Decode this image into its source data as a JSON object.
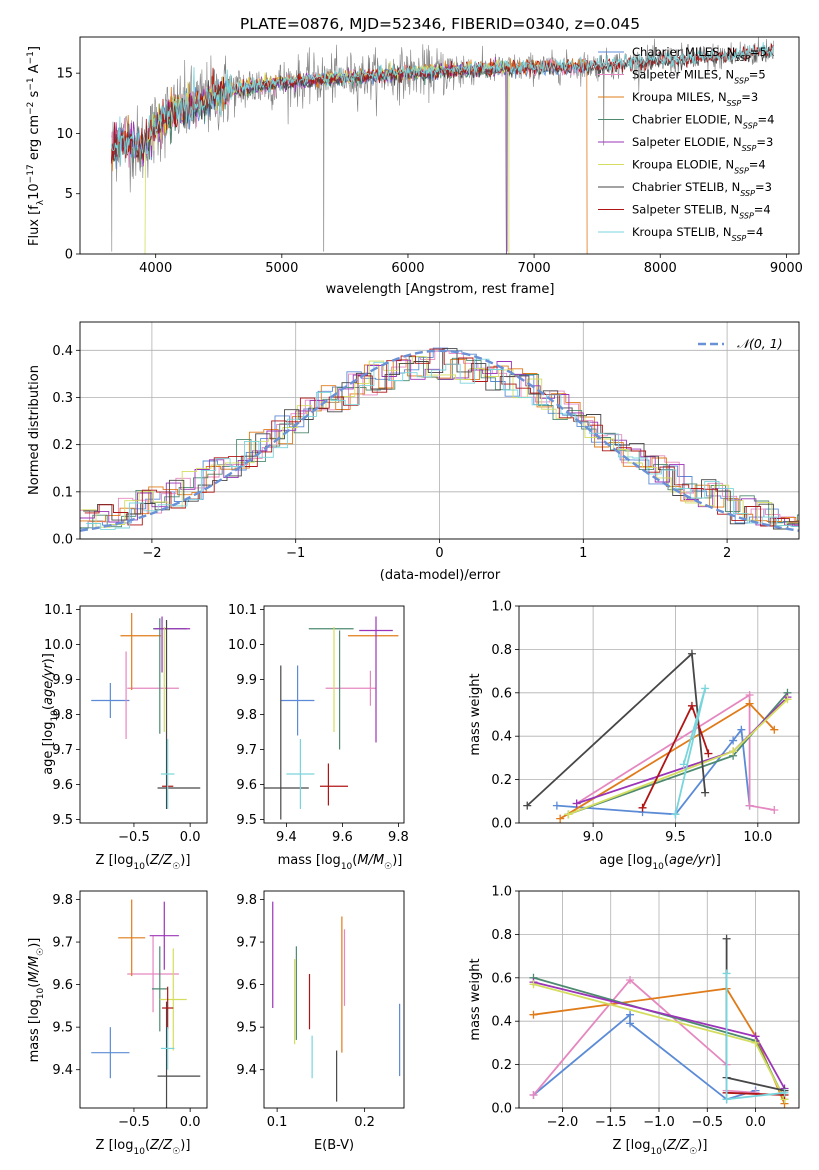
{
  "figure": {
    "title": "PLATE=0876, MJD=52346, FIBERID=0340, z=0.045",
    "colors": {
      "chabrier_miles": "#5b8bd6",
      "salpeter_miles": "#e588c0",
      "kroupa_miles": "#e07b1a",
      "chabrier_elodie": "#4d8a70",
      "salpeter_elodie": "#9b34b8",
      "kroupa_elodie": "#d4dd5e",
      "chabrier_stelib": "#474747",
      "salpeter_stelib": "#b01515",
      "kroupa_stelib": "#79d5dc",
      "data": "#808080",
      "gaussian": "#6a91d6"
    }
  },
  "chart_data": [
    {
      "id": "spectrum",
      "type": "line",
      "xlabel": "wavelength [Angstrom, rest frame]",
      "ylabel": "Flux [fλ10⁻¹⁷ erg cm⁻² s⁻¹ A⁻¹]",
      "xlim": [
        3400,
        9100
      ],
      "ylim": [
        0,
        18
      ],
      "xticks": [
        "4000",
        "5000",
        "6000",
        "7000",
        "8000",
        "9000"
      ],
      "yticks": [
        "0",
        "5",
        "10",
        "15"
      ],
      "legend": [
        "Chabrier MILES, N_SSP=5",
        "Salpeter MILES, N_SSP=5",
        "Kroupa MILES, N_SSP=3",
        "Chabrier ELODIE, N_SSP=4",
        "Salpeter ELODIE, N_SSP=3",
        "Kroupa ELODIE, N_SSP=4",
        "Chabrier STELIB, N_SSP=3",
        "Salpeter STELIB, N_SSP=4",
        "Kroupa STELIB, N_SSP=4"
      ],
      "legend_placement": "upper right",
      "continuum_x": [
        3650,
        3700,
        3800,
        3900,
        4000,
        4100,
        4200,
        4300,
        4400,
        4500,
        4700,
        5000,
        5300,
        5600,
        6000,
        6400,
        6800,
        7200,
        7600,
        8000,
        8400,
        8800,
        8900
      ],
      "continuum_y": [
        8.5,
        9.5,
        9.3,
        8.9,
        10.5,
        11.5,
        12,
        12.3,
        12.8,
        13.3,
        13.8,
        14.2,
        14.5,
        14.7,
        15,
        15.2,
        15.4,
        15.5,
        15.7,
        16.0,
        16.3,
        16.8,
        17.0
      ]
    },
    {
      "id": "residuals",
      "type": "line",
      "xlabel": "(data-model)/error",
      "ylabel": "Normed distribution",
      "xlim": [
        -2.5,
        2.5
      ],
      "ylim": [
        0,
        0.46
      ],
      "xticks": [
        "−2",
        "−1",
        "0",
        "1",
        "2"
      ],
      "yticks": [
        "0.0",
        "0.1",
        "0.2",
        "0.3",
        "0.4"
      ],
      "grid": true,
      "legend": [
        "𝒩(0, 1)"
      ],
      "legend_placement": "upper right",
      "gaussian": {
        "mean": 0,
        "sigma": 1
      }
    },
    {
      "id": "age_vs_Z",
      "type": "scatter",
      "xlabel": "Z [log₁₀(Z/Z☉)]",
      "ylabel": "age  [log₁₀(age/yr)]",
      "xlim": [
        -0.98,
        0.15
      ],
      "ylim": [
        9.49,
        10.11
      ],
      "xticks": [
        "−0.5",
        "0.0"
      ],
      "yticks": [
        "9.5",
        "9.6",
        "9.7",
        "9.8",
        "9.9",
        "10.0",
        "10.1"
      ],
      "points": [
        {
          "model": "chabrier_miles",
          "x": -0.71,
          "xerr": 0.17,
          "y": 9.84,
          "yerr": 0.05
        },
        {
          "model": "salpeter_miles",
          "x": -0.33,
          "xerr": 0.23,
          "y": 9.875,
          "yerr": 0.0
        },
        {
          "model": "salpeter_miles",
          "x": -0.57,
          "xerr": 0.0,
          "y": 9.855,
          "yerr": 0.125
        },
        {
          "model": "kroupa_miles",
          "x": -0.44,
          "xerr": 0.18,
          "y": 10.025,
          "yerr": 0.0
        },
        {
          "model": "kroupa_miles",
          "x": -0.52,
          "xerr": 0.0,
          "y": 9.98,
          "yerr": 0.11
        },
        {
          "model": "chabrier_elodie",
          "x": -0.27,
          "xerr": 0.0,
          "y": 9.91,
          "yerr": 0.165
        },
        {
          "model": "chabrier_elodie",
          "x": -0.18,
          "xerr": 0.15,
          "y": 10.045,
          "yerr": 0.0
        },
        {
          "model": "salpeter_elodie",
          "x": -0.16,
          "xerr": 0.16,
          "y": 10.045,
          "yerr": 0.0
        },
        {
          "model": "salpeter_elodie",
          "x": -0.25,
          "xerr": 0.0,
          "y": 10.0,
          "yerr": 0.08
        },
        {
          "model": "kroupa_elodie",
          "x": -0.23,
          "xerr": 0.0,
          "y": 9.9,
          "yerr": 0.15
        },
        {
          "model": "chabrier_stelib",
          "x": -0.21,
          "xerr": 0.0,
          "y": 9.8,
          "yerr": 0.27
        },
        {
          "model": "chabrier_stelib",
          "x": -0.1,
          "xerr": 0.19,
          "y": 9.59,
          "yerr": 0.0
        },
        {
          "model": "salpeter_stelib",
          "x": -0.2,
          "xerr": 0.05,
          "y": 9.595,
          "yerr": 0.0
        },
        {
          "model": "kroupa_stelib",
          "x": -0.2,
          "xerr": 0.06,
          "y": 9.63,
          "yerr": 0.1
        }
      ]
    },
    {
      "id": "age_vs_mass",
      "type": "scatter",
      "xlabel": "mass [log₁₀(M/M☉)]",
      "ylabel": "",
      "xlim": [
        9.32,
        9.82
      ],
      "ylim": [
        9.49,
        10.11
      ],
      "xticks": [
        "9.4",
        "9.6",
        "9.8"
      ],
      "yticks": [
        "9.5",
        "9.6",
        "9.7",
        "9.8",
        "9.9",
        "10.0",
        "10.1"
      ],
      "points": [
        {
          "model": "chabrier_miles",
          "x": 9.44,
          "xerr": 0.06,
          "y": 9.84,
          "yerr": 0.1
        },
        {
          "model": "salpeter_miles",
          "x": 9.63,
          "xerr": 0.09,
          "y": 9.875,
          "yerr": 0.0
        },
        {
          "model": "salpeter_miles",
          "x": 9.7,
          "xerr": 0.0,
          "y": 9.875,
          "yerr": 0.05
        },
        {
          "model": "kroupa_miles",
          "x": 9.71,
          "xerr": 0.09,
          "y": 10.025,
          "yerr": 0.0
        },
        {
          "model": "chabrier_elodie",
          "x": 9.56,
          "xerr": 0.08,
          "y": 10.045,
          "yerr": 0.0
        },
        {
          "model": "chabrier_elodie",
          "x": 9.59,
          "xerr": 0.0,
          "y": 9.87,
          "yerr": 0.17
        },
        {
          "model": "salpeter_elodie",
          "x": 9.72,
          "xerr": 0.06,
          "y": 10.04,
          "yerr": 0.0
        },
        {
          "model": "salpeter_elodie",
          "x": 9.72,
          "xerr": 0.0,
          "y": 9.9,
          "yerr": 0.18
        },
        {
          "model": "kroupa_elodie",
          "x": 9.57,
          "xerr": 0.0,
          "y": 9.9,
          "yerr": 0.15
        },
        {
          "model": "chabrier_stelib",
          "x": 9.4,
          "xerr": 0.08,
          "y": 9.59,
          "yerr": 0.0
        },
        {
          "model": "chabrier_stelib",
          "x": 9.38,
          "xerr": 0.0,
          "y": 9.72,
          "yerr": 0.22
        },
        {
          "model": "salpeter_stelib",
          "x": 9.57,
          "xerr": 0.05,
          "y": 9.595,
          "yerr": 0.0
        },
        {
          "model": "salpeter_stelib",
          "x": 9.55,
          "xerr": 0.0,
          "y": 9.6,
          "yerr": 0.06
        },
        {
          "model": "kroupa_stelib",
          "x": 9.45,
          "xerr": 0.05,
          "y": 9.63,
          "yerr": 0.1
        }
      ]
    },
    {
      "id": "weight_vs_age",
      "type": "line",
      "xlabel": "age  [log₁₀(age/yr)]",
      "ylabel": "mass weight",
      "xlim": [
        8.55,
        10.25
      ],
      "ylim": [
        0,
        1.0
      ],
      "xticks": [
        "9.0",
        "9.5",
        "10.0"
      ],
      "yticks": [
        "0.0",
        "0.2",
        "0.4",
        "0.6",
        "0.8",
        "1.0"
      ],
      "grid": true,
      "series": [
        {
          "model": "chabrier_miles",
          "points": [
            [
              8.78,
              0.08
            ],
            [
              9.3,
              0.05
            ],
            [
              9.5,
              0.04
            ],
            [
              9.85,
              0.38
            ],
            [
              9.9,
              0.43
            ],
            [
              9.95,
              0.08
            ]
          ]
        },
        {
          "model": "salpeter_miles",
          "points": [
            [
              8.9,
              0.09
            ],
            [
              9.95,
              0.59
            ],
            [
              9.95,
              0.08
            ],
            [
              10.1,
              0.06
            ]
          ]
        },
        {
          "model": "kroupa_miles",
          "points": [
            [
              8.8,
              0.02
            ],
            [
              9.95,
              0.55
            ],
            [
              10.1,
              0.43
            ]
          ]
        },
        {
          "model": "chabrier_elodie",
          "points": [
            [
              8.85,
              0.04
            ],
            [
              9.85,
              0.31
            ],
            [
              10.18,
              0.6
            ]
          ]
        },
        {
          "model": "salpeter_elodie",
          "points": [
            [
              8.9,
              0.09
            ],
            [
              9.85,
              0.33
            ],
            [
              10.18,
              0.58
            ]
          ]
        },
        {
          "model": "kroupa_elodie",
          "points": [
            [
              8.85,
              0.04
            ],
            [
              9.85,
              0.33
            ],
            [
              10.18,
              0.57
            ]
          ]
        },
        {
          "model": "chabrier_stelib",
          "points": [
            [
              8.6,
              0.08
            ],
            [
              9.6,
              0.78
            ],
            [
              9.68,
              0.14
            ]
          ]
        },
        {
          "model": "salpeter_stelib",
          "points": [
            [
              9.3,
              0.07
            ],
            [
              9.6,
              0.54
            ],
            [
              9.7,
              0.32
            ]
          ]
        },
        {
          "model": "kroupa_stelib",
          "points": [
            [
              9.5,
              0.04
            ],
            [
              9.68,
              0.62
            ],
            [
              9.55,
              0.27
            ]
          ]
        }
      ]
    },
    {
      "id": "mass_vs_Z",
      "type": "scatter",
      "xlabel": "Z [log₁₀(Z/Z☉)]",
      "ylabel": "mass [log₁₀(M/M☉)]",
      "xlim": [
        -0.98,
        0.15
      ],
      "ylim": [
        9.31,
        9.82
      ],
      "xticks": [
        "−0.5",
        "0.0"
      ],
      "yticks": [
        "9.4",
        "9.5",
        "9.6",
        "9.7",
        "9.8"
      ],
      "points": [
        {
          "model": "chabrier_miles",
          "x": -0.71,
          "xerr": 0.17,
          "y": 9.44,
          "yerr": 0.06
        },
        {
          "model": "salpeter_miles",
          "x": -0.33,
          "xerr": 0.23,
          "y": 9.625,
          "yerr": 0.09
        },
        {
          "model": "kroupa_miles",
          "x": -0.52,
          "xerr": 0.12,
          "y": 9.71,
          "yerr": 0.09
        },
        {
          "model": "chabrier_elodie",
          "x": -0.27,
          "xerr": 0.07,
          "y": 9.59,
          "yerr": 0.1
        },
        {
          "model": "salpeter_elodie",
          "x": -0.23,
          "xerr": 0.13,
          "y": 9.715,
          "yerr": 0.08
        },
        {
          "model": "kroupa_elodie",
          "x": -0.15,
          "xerr": 0.12,
          "y": 9.565,
          "yerr": 0.12
        },
        {
          "model": "chabrier_stelib",
          "x": -0.1,
          "xerr": 0.19,
          "y": 9.385,
          "yerr": 0.0
        },
        {
          "model": "chabrier_stelib",
          "x": -0.21,
          "xerr": 0.0,
          "y": 9.4,
          "yerr": 0.16
        },
        {
          "model": "salpeter_stelib",
          "x": -0.2,
          "xerr": 0.05,
          "y": 9.545,
          "yerr": 0.05
        },
        {
          "model": "kroupa_stelib",
          "x": -0.2,
          "xerr": 0.06,
          "y": 9.45,
          "yerr": 0.05
        }
      ]
    },
    {
      "id": "mass_vs_ebv",
      "type": "scatter",
      "xlabel": "E(B-V)",
      "ylabel": "",
      "xlim": [
        0.085,
        0.245
      ],
      "ylim": [
        9.31,
        9.82
      ],
      "xticks": [
        "0.1",
        "0.2"
      ],
      "yticks": [
        "9.4",
        "9.5",
        "9.6",
        "9.7",
        "9.8"
      ],
      "points": [
        {
          "model": "salpeter_elodie",
          "x": 0.095,
          "yerr": 0.125,
          "y": 9.67
        },
        {
          "model": "chabrier_elodie",
          "x": 0.122,
          "yerr": 0.11,
          "y": 9.58
        },
        {
          "model": "kroupa_elodie",
          "x": 0.12,
          "yerr": 0.1,
          "y": 9.56
        },
        {
          "model": "salpeter_stelib",
          "x": 0.137,
          "yerr": 0.065,
          "y": 9.56
        },
        {
          "model": "kroupa_stelib",
          "x": 0.14,
          "yerr": 0.05,
          "y": 9.43
        },
        {
          "model": "chabrier_stelib",
          "x": 0.168,
          "yerr": 0.06,
          "y": 9.385
        },
        {
          "model": "kroupa_miles",
          "x": 0.174,
          "yerr": 0.16,
          "y": 9.6
        },
        {
          "model": "salpeter_miles",
          "x": 0.177,
          "yerr": 0.09,
          "y": 9.64
        },
        {
          "model": "chabrier_miles",
          "x": 0.24,
          "yerr": 0.085,
          "y": 9.47
        }
      ]
    },
    {
      "id": "weight_vs_Z",
      "type": "line",
      "xlabel": "Z [log₁₀(Z/Z☉)]",
      "ylabel": "mass weight",
      "xlim": [
        -2.45,
        0.45
      ],
      "ylim": [
        0,
        1.0
      ],
      "xticks": [
        "−2.0",
        "−1.5",
        "−1.0",
        "−0.5",
        "0.0"
      ],
      "yticks": [
        "0.0",
        "0.2",
        "0.4",
        "0.6",
        "0.8",
        "1.0"
      ],
      "grid": true,
      "series": [
        {
          "model": "chabrier_miles",
          "points": [
            [
              -2.3,
              0.06
            ],
            [
              -1.3,
              0.43
            ],
            [
              -1.3,
              0.39
            ],
            [
              -0.3,
              0.04
            ],
            [
              0.0,
              0.08
            ]
          ]
        },
        {
          "model": "salpeter_miles",
          "points": [
            [
              -2.3,
              0.06
            ],
            [
              -1.3,
              0.59
            ],
            [
              -0.3,
              0.2
            ],
            [
              -0.3,
              0.08
            ],
            [
              0.0,
              0.07
            ]
          ]
        },
        {
          "model": "kroupa_miles",
          "points": [
            [
              -2.3,
              0.43
            ],
            [
              -0.3,
              0.55
            ],
            [
              0.0,
              0.33
            ],
            [
              0.3,
              0.02
            ]
          ]
        },
        {
          "model": "chabrier_elodie",
          "points": [
            [
              -2.3,
              0.6
            ],
            [
              0.0,
              0.31
            ],
            [
              0.3,
              0.04
            ]
          ]
        },
        {
          "model": "salpeter_elodie",
          "points": [
            [
              -2.3,
              0.58
            ],
            [
              0.0,
              0.33
            ],
            [
              0.3,
              0.09
            ]
          ]
        },
        {
          "model": "kroupa_elodie",
          "points": [
            [
              -2.3,
              0.57
            ],
            [
              0.0,
              0.3
            ],
            [
              0.3,
              0.04
            ]
          ]
        },
        {
          "model": "chabrier_stelib",
          "points": [
            [
              -0.3,
              0.78
            ],
            [
              -0.3,
              0.14
            ],
            [
              0.3,
              0.08
            ]
          ]
        },
        {
          "model": "salpeter_stelib",
          "points": [
            [
              -0.3,
              0.07
            ],
            [
              0.3,
              0.06
            ]
          ]
        },
        {
          "model": "kroupa_stelib",
          "points": [
            [
              -0.3,
              0.62
            ],
            [
              -0.3,
              0.04
            ],
            [
              0.3,
              0.07
            ]
          ]
        }
      ]
    }
  ]
}
